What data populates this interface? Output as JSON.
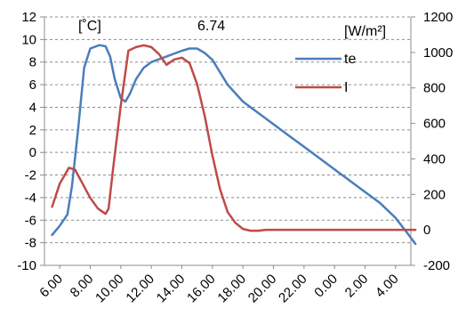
{
  "chart_data": {
    "type": "line",
    "left_unit": "[˚C]",
    "right_unit": "[W/m²]",
    "annotation": "6.74",
    "x_tick_labels": [
      "6.00",
      "8.00",
      "10.00",
      "12.00",
      "14.00",
      "16.00",
      "18.00",
      "20.00",
      "22.00",
      "0.00",
      "2.00",
      "4.00"
    ],
    "y_left": {
      "min": -10,
      "max": 12,
      "step": 2,
      "tick_labels": [
        "12",
        "10",
        "8",
        "6",
        "4",
        "2",
        "0",
        "-2",
        "-4",
        "-6",
        "-8",
        "-10"
      ]
    },
    "y_right": {
      "min": -200,
      "max": 1200,
      "step": 200,
      "tick_labels": [
        "1200",
        "1000",
        "800",
        "600",
        "400",
        "200",
        "0",
        "-200"
      ]
    },
    "x_hours": {
      "min": 5,
      "max": 29
    },
    "grid": "horizontal dashed",
    "legend_position": "right",
    "series": [
      {
        "name": "te",
        "axis": "left",
        "color": "#4a7ebb",
        "points": [
          [
            5.5,
            -7.3
          ],
          [
            6.0,
            -6.5
          ],
          [
            6.5,
            -5.5
          ],
          [
            6.8,
            -3.0
          ],
          [
            7.2,
            2.0
          ],
          [
            7.6,
            7.5
          ],
          [
            8.0,
            9.2
          ],
          [
            8.6,
            9.5
          ],
          [
            9.0,
            9.4
          ],
          [
            9.3,
            8.5
          ],
          [
            9.6,
            6.5
          ],
          [
            10.0,
            4.8
          ],
          [
            10.3,
            4.5
          ],
          [
            10.6,
            5.2
          ],
          [
            11.0,
            6.5
          ],
          [
            11.5,
            7.5
          ],
          [
            12.0,
            8.0
          ],
          [
            13.0,
            8.5
          ],
          [
            14.0,
            9.0
          ],
          [
            14.5,
            9.2
          ],
          [
            15.0,
            9.2
          ],
          [
            15.5,
            8.8
          ],
          [
            16.0,
            8.2
          ],
          [
            17.0,
            6.0
          ],
          [
            18.0,
            4.5
          ],
          [
            19.0,
            3.5
          ],
          [
            20.0,
            2.5
          ],
          [
            21.0,
            1.5
          ],
          [
            22.0,
            0.5
          ],
          [
            23.0,
            -0.5
          ],
          [
            24.0,
            -1.5
          ],
          [
            25.0,
            -2.5
          ],
          [
            26.0,
            -3.5
          ],
          [
            27.0,
            -4.5
          ],
          [
            28.0,
            -5.8
          ],
          [
            28.8,
            -7.2
          ],
          [
            29.3,
            -8.1
          ]
        ]
      },
      {
        "name": "I",
        "axis": "right",
        "color": "#be4b48",
        "points": [
          [
            5.5,
            130
          ],
          [
            6.0,
            260
          ],
          [
            6.6,
            350
          ],
          [
            7.0,
            340
          ],
          [
            7.5,
            260
          ],
          [
            8.0,
            180
          ],
          [
            8.5,
            120
          ],
          [
            9.0,
            90
          ],
          [
            9.2,
            120
          ],
          [
            9.5,
            350
          ],
          [
            10.0,
            700
          ],
          [
            10.5,
            1010
          ],
          [
            11.0,
            1030
          ],
          [
            11.5,
            1040
          ],
          [
            12.0,
            1030
          ],
          [
            12.5,
            990
          ],
          [
            13.0,
            930
          ],
          [
            13.5,
            960
          ],
          [
            14.0,
            970
          ],
          [
            14.5,
            940
          ],
          [
            15.0,
            820
          ],
          [
            15.5,
            640
          ],
          [
            16.0,
            420
          ],
          [
            16.5,
            230
          ],
          [
            17.0,
            100
          ],
          [
            17.5,
            40
          ],
          [
            18.0,
            5
          ],
          [
            18.5,
            -5
          ],
          [
            19.0,
            -5
          ],
          [
            19.5,
            0
          ],
          [
            20.0,
            0
          ],
          [
            22.0,
            0
          ],
          [
            24.0,
            0
          ],
          [
            26.0,
            0
          ],
          [
            28.0,
            0
          ],
          [
            29.3,
            0
          ]
        ]
      }
    ]
  }
}
